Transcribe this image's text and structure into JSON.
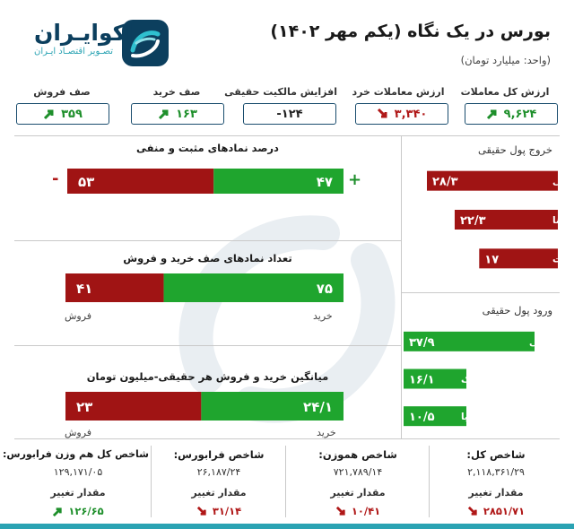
{
  "header": {
    "title": "بورس در یک نگاه (یکم مهر ۱۴۰۲)",
    "unit": "(واحد: میلیارد تومان)",
    "logo_name": "اکوایـران",
    "logo_tagline": "تصـویر اقتصـاد ایـران",
    "logo_icon": "ecoiran-swirl-icon"
  },
  "top_stats": [
    {
      "label": "ارزش کل معاملات",
      "value": "۹,۶۲۴",
      "trend": "up"
    },
    {
      "label": "ارزش معاملات خرد",
      "value": "۳,۳۴۰",
      "trend": "down"
    },
    {
      "label": "افزایش مالکیت حقیقی",
      "value": "-۱۲۴",
      "trend": "none"
    },
    {
      "label": "صف خرید",
      "value": "۱۶۳",
      "trend": "up"
    },
    {
      "label": "صف فروش",
      "value": "۳۵۹",
      "trend": "up"
    }
  ],
  "colors": {
    "positive": "#1fa52e",
    "negative": "#a01414",
    "border": "#1a4d6e",
    "brand": "#0c3f5e",
    "accent": "#2aa3b3"
  },
  "chart_data": [
    {
      "type": "bar",
      "title": "درصد نمادهای مثبت و منفی",
      "positive_sign": "+",
      "negative_sign": "-",
      "series": [
        {
          "name": "",
          "values": [
            47,
            53
          ]
        }
      ],
      "value_labels": [
        "۴۷",
        "۵۳"
      ]
    },
    {
      "type": "bar",
      "title": "تعداد نمادهای صف خرید و فروش",
      "categories": [
        "خرید",
        "فروش"
      ],
      "values": [
        75,
        41
      ],
      "value_labels": [
        "۷۵",
        "۴۱"
      ]
    },
    {
      "type": "bar",
      "title": "میانگین خرید و فروش هر حقیقی-میلیون تومان",
      "categories": [
        "خرید",
        "فروش"
      ],
      "values": [
        24.1,
        23
      ],
      "value_labels": [
        "۲۴/۱",
        "۲۳"
      ]
    },
    {
      "type": "bar",
      "title": "خروج پول حقیقی",
      "categories": [
        "فملی",
        "شپنا",
        "وبملت"
      ],
      "values": [
        28.3,
        22.3,
        17
      ],
      "value_labels": [
        "۲۸/۳",
        "۲۲/۳",
        "۱۷"
      ]
    },
    {
      "type": "bar",
      "title": "ورود پول حقیقی",
      "categories": [
        "حکشتی",
        "خکمک",
        "خزامیا"
      ],
      "values": [
        37.9,
        16.1,
        10.5
      ],
      "value_labels": [
        "۳۷/۹",
        "۱۶/۱",
        "۱۰/۵"
      ]
    }
  ],
  "indices": [
    {
      "title": "شاخص کل:",
      "value": "۲,۱۱۸,۳۶۱/۲۹",
      "change_label": "مقدار تغییر",
      "change": "۲۸۵۱/۷۱",
      "trend": "down"
    },
    {
      "title": "شاخص هموزن:",
      "value": "۷۲۱,۷۸۹/۱۴",
      "change_label": "مقدار تغییر",
      "change": "۱۰/۴۱",
      "trend": "down"
    },
    {
      "title": "شاخص فرابورس:",
      "value": "۲۶,۱۸۷/۲۴",
      "change_label": "مقدار تغییر",
      "change": "۳۱/۱۴",
      "trend": "down"
    },
    {
      "title": "شاخص کل هم وزن فرابورس:",
      "value": "۱۲۹,۱۷۱/۰۵",
      "change_label": "مقدار تغییر",
      "change": "۱۲۶/۶۵",
      "trend": "up"
    }
  ]
}
